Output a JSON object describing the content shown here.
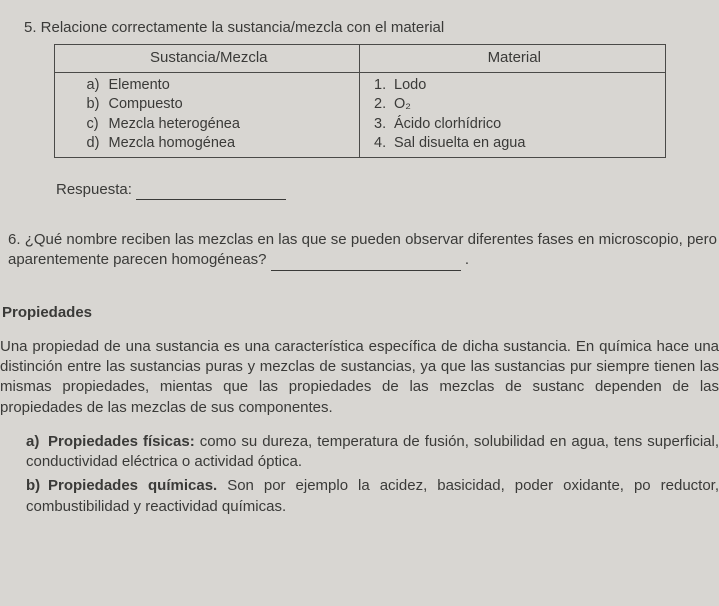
{
  "q5": {
    "title": "5. Relacione correctamente la sustancia/mezcla con el material",
    "header_left": "Sustancia/Mezcla",
    "header_right": "Material",
    "left": [
      {
        "letter": "a)",
        "text": "Elemento"
      },
      {
        "letter": "b)",
        "text": "Compuesto"
      },
      {
        "letter": "c)",
        "text": "Mezcla heterogénea"
      },
      {
        "letter": "d)",
        "text": "Mezcla homogénea"
      }
    ],
    "right": [
      {
        "num": "1.",
        "text": "Lodo"
      },
      {
        "num": "2.",
        "text": "O₂"
      },
      {
        "num": "3.",
        "text": "Ácido clorhídrico"
      },
      {
        "num": "4.",
        "text": "Sal disuelta en agua"
      }
    ],
    "respuesta_label": "Respuesta:"
  },
  "q6": {
    "text_a": "6. ¿Qué nombre reciben las mezclas en las que se pueden observar diferentes fases en",
    "text_b": "microscopio, pero aparentemente parecen homogéneas?",
    "period": "."
  },
  "props": {
    "title": "Propiedades",
    "body": "Una propiedad de una sustancia es una característica específica de dicha sustancia. En química hace una distinción entre las sustancias puras y mezclas de sustancias, ya que las sustancias pur siempre tienen las mismas propiedades, mientas que las propiedades de las mezclas de sustanc dependen de las propiedades de las mezclas de sus componentes.",
    "items": [
      {
        "letter": "a)",
        "lead": "Propiedades físicas:",
        "rest": " como su dureza, temperatura de fusión, solubilidad en agua, tens superficial, conductividad eléctrica o actividad óptica."
      },
      {
        "letter": "b)",
        "lead": "Propiedades químicas.",
        "rest": " Son por ejemplo la acidez, basicidad, poder oxidante, po reductor, combustibilidad y reactividad químicas."
      }
    ]
  }
}
